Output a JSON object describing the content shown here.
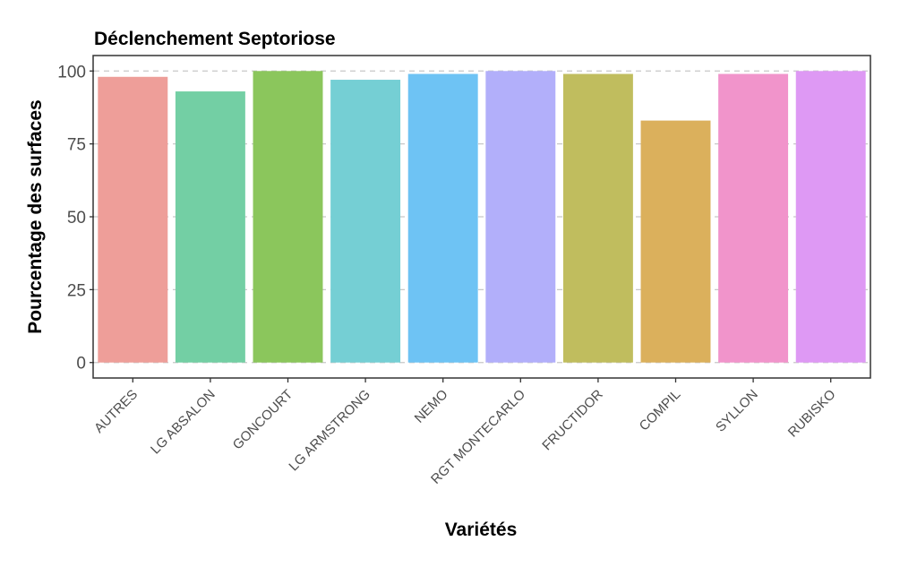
{
  "chart_data": {
    "type": "bar",
    "title": "Déclenchement Septoriose",
    "xlabel": "Variétés",
    "ylabel": "Pourcentage des surfaces",
    "ylim": [
      -5,
      105
    ],
    "yticks": [
      0,
      25,
      50,
      75,
      100
    ],
    "grid": true,
    "legend": "none",
    "categories": [
      "AUTRES",
      "LG ABSALON",
      "GONCOURT",
      "LG ARMSTRONG",
      "NEMO",
      "RGT MONTECARLO",
      "FRUCTIDOR",
      "COMPIL",
      "SYLLON",
      "RUBISKO"
    ],
    "values": [
      98,
      93,
      100,
      97,
      99,
      100,
      99,
      83,
      99,
      100
    ],
    "colors": [
      "#EE9E99",
      "#73CFA4",
      "#8BC65C",
      "#75CFD4",
      "#6EC3F4",
      "#B2AFFA",
      "#C0BD5E",
      "#DBB05C",
      "#F194CB",
      "#DE99F4"
    ]
  }
}
